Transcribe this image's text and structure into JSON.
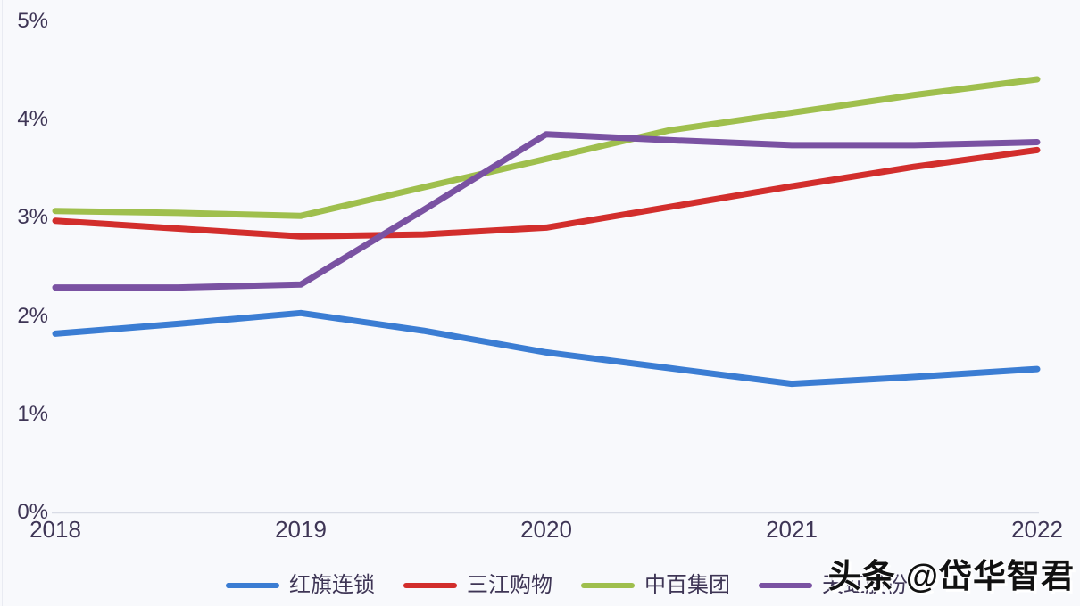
{
  "chart_data": {
    "type": "line",
    "title": "",
    "xlabel": "",
    "ylabel": "",
    "unit": "%",
    "ylim": [
      0,
      5
    ],
    "grid": false,
    "legend_position": "bottom",
    "x": [
      2018,
      2018.5,
      2019,
      2019.5,
      2020,
      2020.5,
      2021,
      2021.5,
      2022
    ],
    "x_ticks": [
      "2018",
      "2019",
      "2020",
      "2021",
      "2022"
    ],
    "x_tick_years": [
      2018,
      2019,
      2020,
      2021,
      2022
    ],
    "y_ticks": [
      "0%",
      "1%",
      "2%",
      "3%",
      "4%",
      "5%"
    ],
    "series": [
      {
        "name": "红旗连锁",
        "color": "#3b7dd3",
        "values": [
          1.82,
          1.92,
          2.03,
          1.85,
          1.63,
          1.47,
          1.31,
          1.38,
          1.46
        ],
        "annual_values": [
          1.82,
          2.03,
          1.63,
          1.31,
          1.46
        ]
      },
      {
        "name": "三江购物",
        "color": "#d22e2c",
        "values": [
          2.97,
          2.89,
          2.81,
          2.83,
          2.9,
          3.11,
          3.32,
          3.52,
          3.69
        ],
        "annual_values": [
          2.97,
          2.81,
          2.9,
          3.32,
          3.69
        ]
      },
      {
        "name": "中百集团",
        "color": "#9fbf4d",
        "values": [
          3.07,
          3.05,
          3.02,
          3.31,
          3.6,
          3.89,
          4.07,
          4.25,
          4.41
        ],
        "annual_values": [
          3.07,
          3.02,
          3.6,
          4.07,
          4.41
        ]
      },
      {
        "name": "天虹股份",
        "color": "#7a52a2",
        "values": [
          2.29,
          2.29,
          2.32,
          3.08,
          3.85,
          3.79,
          3.74,
          3.74,
          3.77
        ],
        "annual_values": [
          2.29,
          2.32,
          3.85,
          3.74,
          3.77
        ]
      }
    ]
  },
  "style": {
    "background": "#f8f9fc",
    "text_color": "#3e3555",
    "axis_line_color": "#d9dce6"
  },
  "watermark": {
    "text": "头条 @岱华智君"
  }
}
